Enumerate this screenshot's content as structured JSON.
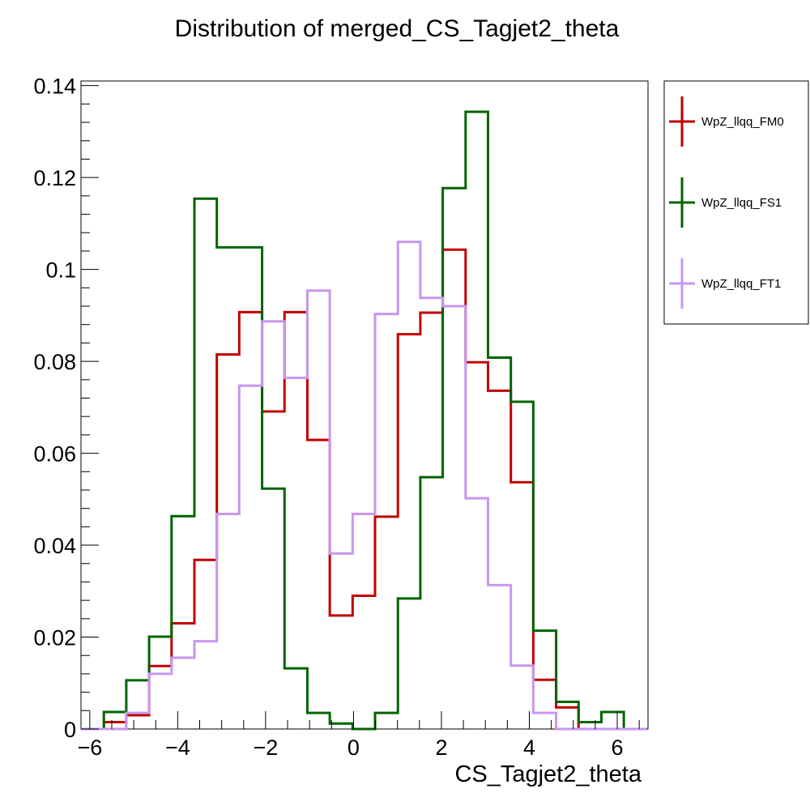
{
  "chart_data": {
    "type": "histogram-step",
    "title": "Distribution of merged_CS_Tagjet2_theta",
    "xlabel": "CS_Tagjet2_theta",
    "ylabel": "",
    "xlim": [
      -6.2,
      6.7
    ],
    "ylim": [
      0,
      0.141
    ],
    "bin_edges": [
      -6.2,
      -5.68,
      -5.17,
      -4.65,
      -4.14,
      -3.62,
      -3.11,
      -2.6,
      -2.08,
      -1.57,
      -1.05,
      -0.54,
      -0.02,
      0.49,
      1.01,
      1.52,
      2.03,
      2.55,
      3.06,
      3.58,
      4.09,
      4.61,
      5.12,
      5.64,
      6.15,
      6.67
    ],
    "x_ticks": [
      -6,
      -4,
      -2,
      0,
      2,
      4,
      6
    ],
    "x_tick_labels": [
      "−6",
      "−4",
      "−2",
      "0",
      "2",
      "4",
      "6"
    ],
    "y_ticks": [
      0,
      0.02,
      0.04,
      0.06,
      0.08,
      0.1,
      0.12,
      0.14
    ],
    "y_tick_labels": [
      "0",
      "0.02",
      "0.04",
      "0.06",
      "0.08",
      "0.1",
      "0.12",
      "0.14"
    ],
    "legend_position": "top-right, outside plot",
    "series": [
      {
        "name": "WpZ_llqq_FM0",
        "color": "#c00000",
        "values": [
          0,
          0.0015,
          0.003,
          0.0137,
          0.023,
          0.0368,
          0.0815,
          0.0907,
          0.0691,
          0.0907,
          0.0629,
          0.0247,
          0.029,
          0.0462,
          0.0859,
          0.0906,
          0.1043,
          0.0798,
          0.0736,
          0.0537,
          0.0107,
          0.0047,
          0,
          0,
          0
        ]
      },
      {
        "name": "WpZ_llqq_FS1",
        "color": "#006400",
        "values": [
          0,
          0.0037,
          0.0106,
          0.0201,
          0.0463,
          0.1154,
          0.1048,
          0.1048,
          0.0523,
          0.0132,
          0.0035,
          0.0012,
          0,
          0.0035,
          0.0284,
          0.0548,
          0.1177,
          0.1343,
          0.0808,
          0.0712,
          0.0214,
          0.0059,
          0.0015,
          0.0037,
          0
        ]
      },
      {
        "name": "WpZ_llqq_FT1",
        "color": "#c896f0",
        "values": [
          0,
          0,
          0.0035,
          0.012,
          0.0155,
          0.0191,
          0.0468,
          0.0747,
          0.0887,
          0.0764,
          0.0954,
          0.0382,
          0.0468,
          0.0903,
          0.106,
          0.0938,
          0.092,
          0.0502,
          0.0313,
          0.0138,
          0.0035,
          0,
          0,
          0,
          0
        ]
      }
    ]
  }
}
